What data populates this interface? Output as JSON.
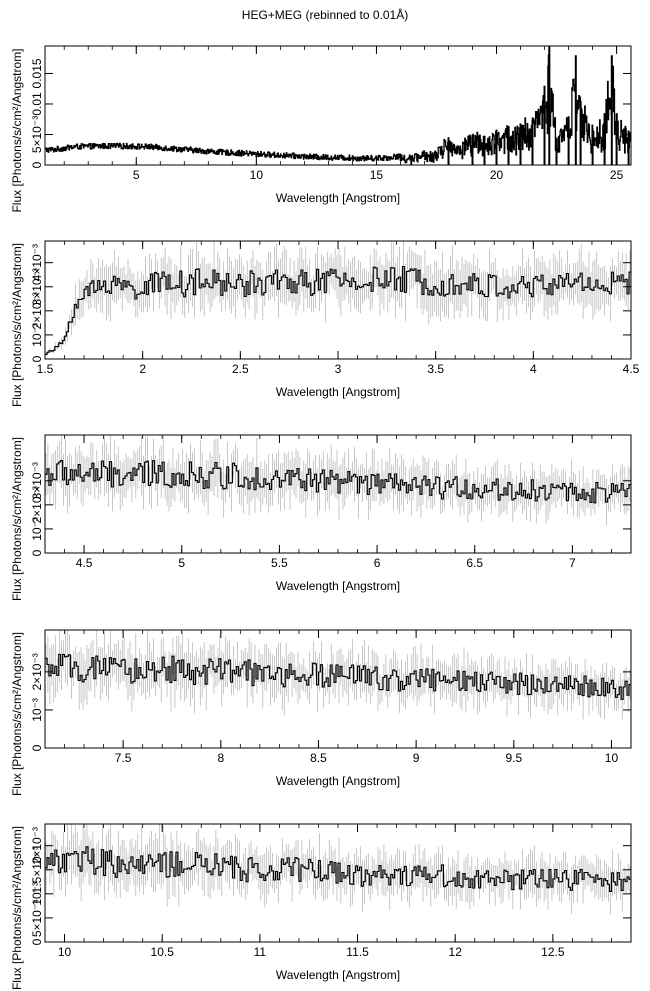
{
  "title": "HEG+MEG (rebinned to 0.01Å)",
  "chart_data": [
    {
      "type": "line",
      "xlabel": "Wavelength [Angstrom]",
      "ylabel": "Flux [Photons/s/cm²/Angstrom]",
      "xlim": [
        1.2,
        25.6
      ],
      "ylim": [
        0,
        0.0195
      ],
      "xticks": [
        5,
        10,
        15,
        20,
        25
      ],
      "yticks": [
        {
          "value": 0,
          "label": "0"
        },
        {
          "value": 0.005,
          "label": "5×10⁻³"
        },
        {
          "value": 0.01,
          "label": "0.01"
        },
        {
          "value": 0.015,
          "label": "0.015"
        }
      ],
      "x": [
        1.5,
        2.5,
        3.5,
        4.5,
        5.5,
        6.5,
        7.5,
        8.5,
        9.5,
        10.5,
        11.5,
        12.5,
        13.5,
        14.5,
        15.5,
        16.5,
        17.5,
        18.0,
        18.5,
        19.0,
        19.5,
        20.0,
        20.5,
        21.0,
        21.5,
        22.0,
        22.2,
        22.5,
        23.0,
        23.3,
        23.5,
        24.0,
        24.5,
        24.8,
        25.0,
        25.5
      ],
      "y": [
        0.0025,
        0.003,
        0.0031,
        0.0031,
        0.003,
        0.0027,
        0.0024,
        0.0021,
        0.0019,
        0.0017,
        0.0015,
        0.0013,
        0.0012,
        0.0011,
        0.0012,
        0.0017,
        0.0026,
        0.0045,
        0.0035,
        0.005,
        0.0048,
        0.0058,
        0.0062,
        0.0068,
        0.0074,
        0.013,
        0.0195,
        0.0045,
        0.008,
        0.018,
        0.0105,
        0.006,
        0.0085,
        0.018,
        0.0085,
        0.0055
      ]
    },
    {
      "type": "line",
      "xlabel": "Wavelength [Angstrom]",
      "ylabel": "Flux [Photons/s/cm²/Angstrom]",
      "xlim": [
        1.5,
        4.5
      ],
      "ylim": [
        0,
        0.0049
      ],
      "xticks": [
        1.5,
        2,
        2.5,
        3,
        3.5,
        4,
        4.5
      ],
      "yticks": [
        {
          "value": 0,
          "label": "0"
        },
        {
          "value": 0.001,
          "label": "10⁻³"
        },
        {
          "value": 0.002,
          "label": "2×10⁻³"
        },
        {
          "value": 0.003,
          "label": "3×10⁻³"
        },
        {
          "value": 0.004,
          "label": "4×10⁻³"
        }
      ],
      "x": [
        1.5,
        1.55,
        1.6,
        1.65,
        1.7,
        1.75,
        1.8,
        1.85,
        1.9,
        2.0,
        2.1,
        2.15,
        2.2,
        2.3,
        2.5,
        2.7,
        3.0,
        3.3,
        3.5,
        3.8,
        4.0,
        4.2,
        4.5
      ],
      "y": [
        0.0002,
        0.0004,
        0.0008,
        0.0022,
        0.0026,
        0.0029,
        0.003,
        0.0034,
        0.0029,
        0.003,
        0.0031,
        0.0035,
        0.0031,
        0.0032,
        0.0031,
        0.0032,
        0.0032,
        0.0033,
        0.0032,
        0.003,
        0.003,
        0.0032,
        0.0031
      ]
    },
    {
      "type": "line",
      "xlabel": "Wavelength [Angstrom]",
      "ylabel": "Flux [Photons/s/cm²/Angstrom]",
      "xlim": [
        4.3,
        7.3
      ],
      "ylim": [
        0,
        0.0049
      ],
      "xticks": [
        4.5,
        5,
        5.5,
        6,
        6.5,
        7
      ],
      "yticks": [
        {
          "value": 0,
          "label": "0"
        },
        {
          "value": 0.001,
          "label": "10⁻³"
        },
        {
          "value": 0.002,
          "label": "2×10⁻³"
        },
        {
          "value": 0.003,
          "label": "3×10⁻³"
        }
      ],
      "x": [
        4.3,
        4.5,
        4.7,
        4.9,
        5.1,
        5.3,
        5.5,
        5.7,
        5.9,
        6.1,
        6.3,
        6.5,
        6.7,
        6.9,
        7.1,
        7.3
      ],
      "y": [
        0.0033,
        0.0033,
        0.0032,
        0.0033,
        0.0032,
        0.0032,
        0.0031,
        0.003,
        0.0029,
        0.0028,
        0.0027,
        0.0027,
        0.0026,
        0.0026,
        0.0025,
        0.0025
      ]
    },
    {
      "type": "line",
      "xlabel": "Wavelength [Angstrom]",
      "ylabel": "Flux [Photons/s/cm²/Angstrom]",
      "xlim": [
        7.1,
        10.1
      ],
      "ylim": [
        0,
        0.0031
      ],
      "xticks": [
        7.5,
        8,
        8.5,
        9,
        9.5,
        10
      ],
      "yticks": [
        {
          "value": 0,
          "label": "0"
        },
        {
          "value": 0.001,
          "label": "10⁻³"
        },
        {
          "value": 0.002,
          "label": "2×10⁻³"
        }
      ],
      "x": [
        7.1,
        7.3,
        7.5,
        7.7,
        7.9,
        8.1,
        8.3,
        8.5,
        8.7,
        8.9,
        9.1,
        9.3,
        9.5,
        9.7,
        9.9,
        10.1
      ],
      "y": [
        0.0021,
        0.0021,
        0.002,
        0.0021,
        0.002,
        0.002,
        0.0019,
        0.0019,
        0.0019,
        0.0018,
        0.0018,
        0.0017,
        0.0017,
        0.0017,
        0.0016,
        0.0015
      ]
    },
    {
      "type": "line",
      "xlabel": "Wavelength [Angstrom]",
      "ylabel": "Flux [Photons/s/cm²/Angstrom]",
      "xlim": [
        9.9,
        12.9
      ],
      "ylim": [
        0,
        0.00245
      ],
      "xticks": [
        10,
        10.5,
        11,
        11.5,
        12,
        12.5
      ],
      "yticks": [
        {
          "value": 0,
          "label": "0"
        },
        {
          "value": 0.0005,
          "label": "5×10⁻⁴"
        },
        {
          "value": 0.001,
          "label": "10⁻³"
        },
        {
          "value": 0.0015,
          "label": "1.5×10⁻³"
        },
        {
          "value": 0.002,
          "label": "2×10⁻³"
        }
      ],
      "x": [
        9.9,
        10.1,
        10.3,
        10.5,
        10.7,
        10.9,
        11.1,
        11.3,
        11.5,
        11.7,
        11.9,
        12.1,
        12.3,
        12.5,
        12.7,
        12.9
      ],
      "y": [
        0.0017,
        0.0017,
        0.0016,
        0.0016,
        0.0016,
        0.0015,
        0.0015,
        0.0015,
        0.0014,
        0.0014,
        0.0014,
        0.0013,
        0.0013,
        0.0013,
        0.0013,
        0.0012
      ]
    }
  ]
}
